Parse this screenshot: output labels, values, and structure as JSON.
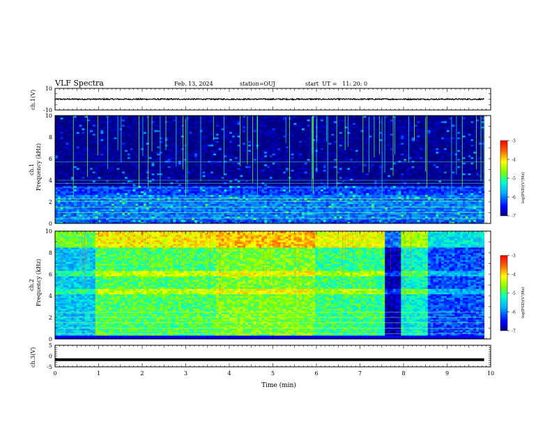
{
  "header": {
    "title": "VLF Spectra",
    "date": "Feb. 13, 2024",
    "station": "station=OUJ",
    "start_ut": "start  UT =   11: 20: 0"
  },
  "axes": {
    "xlabel": "Time  (min)",
    "ch1_v_label": "ch.1(V)",
    "ch2_v_label": "ch.2",
    "ch1_spec_label_a": "ch.1",
    "ch1_spec_label_b": "Frequency  (kHz)",
    "ch2_spec_label_a": "ch.2",
    "ch2_spec_label_b": "Frequency  (kHz)",
    "ch3_label": "ch.3(V)",
    "colorbar_label": "log(PSD)(V²/Hz)"
  },
  "chart_data": [
    {
      "type": "line",
      "panel": "ch1-waveform",
      "ylabel": "ch.1(V)",
      "ylim": [
        -10,
        10
      ],
      "yticks": [
        "10",
        "-10"
      ],
      "x": [
        0,
        9.85
      ],
      "series": [
        {
          "values_band": [
            -0.3,
            0.3
          ]
        }
      ],
      "color": "#000000"
    },
    {
      "type": "heatmap",
      "panel": "ch1-spectrogram",
      "ylabel": "ch.1 Frequency (kHz)",
      "ylim": [
        0,
        10
      ],
      "yticks": [
        "0",
        "2",
        "4",
        "6",
        "8",
        "10"
      ],
      "xlim": [
        0,
        10
      ],
      "data_end_min": 9.85,
      "band_levels": [
        {
          "f": [
            0,
            0.3
          ],
          "level": -6.2
        },
        {
          "f": [
            0.3,
            2.6
          ],
          "level": -6.0
        },
        {
          "f": [
            2.6,
            3.5
          ],
          "level": -6.3
        },
        {
          "f": [
            3.5,
            10
          ],
          "level": -7.0
        }
      ],
      "colorbar": {
        "range": [
          -7,
          -3
        ],
        "ticks": [
          "-3",
          "-4",
          "-5",
          "-6",
          "-7"
        ]
      }
    },
    {
      "type": "heatmap",
      "panel": "ch2-spectrogram",
      "ylabel": "ch.2 Frequency (kHz)",
      "ylim": [
        0,
        10
      ],
      "yticks": [
        "0",
        "2",
        "4",
        "6",
        "8",
        "10"
      ],
      "xlim": [
        0,
        10
      ],
      "data_end_min": 9.85,
      "segments": [
        {
          "t": [
            0,
            0.95
          ],
          "level": -5.6
        },
        {
          "t": [
            0.95,
            3.7
          ],
          "level": -4.9
        },
        {
          "t": [
            3.7,
            5.95
          ],
          "level": -4.7
        },
        {
          "t": [
            5.95,
            7.6
          ],
          "level": -5.0
        },
        {
          "t": [
            7.6,
            7.95
          ],
          "level": -6.8
        },
        {
          "t": [
            7.95,
            8.55
          ],
          "level": -5.3
        },
        {
          "t": [
            8.55,
            9.85
          ],
          "level": -6.2
        }
      ],
      "colorbar": {
        "range": [
          -7,
          -3
        ],
        "ticks": [
          "-3",
          "-4",
          "-5",
          "-6",
          "-7"
        ]
      }
    },
    {
      "type": "line",
      "panel": "ch3-waveform",
      "ylabel": "ch.3(V)",
      "ylim": [
        -5,
        5
      ],
      "yticks": [
        "5",
        "0",
        "-5"
      ],
      "x": [
        0,
        9.85
      ],
      "series": [
        {
          "values": [
            -1.7,
            -1.7
          ]
        }
      ],
      "color": "#000000"
    }
  ],
  "xaxis": {
    "range": [
      0,
      10
    ],
    "ticks": [
      "0",
      "1",
      "2",
      "3",
      "4",
      "5",
      "6",
      "7",
      "8",
      "9",
      "10"
    ]
  }
}
